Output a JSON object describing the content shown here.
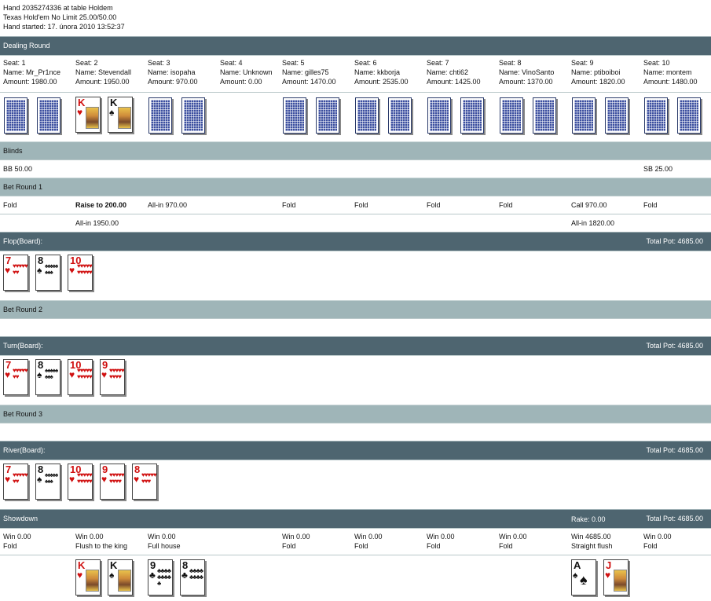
{
  "header": {
    "line1": "Hand 2035274336 at table Holdem",
    "line2": "Texas Hold'em No Limit 25.00/50.00",
    "line3": "Hand started: 17. února 2010 13:52:37"
  },
  "sections": {
    "dealing": "Dealing Round",
    "blinds": "Blinds",
    "bet1": "Bet Round 1",
    "flop": "Flop(Board):",
    "bet2": "Bet Round 2",
    "turn": "Turn(Board):",
    "bet3": "Bet Round 3",
    "river": "River(Board):",
    "showdown": "Showdown"
  },
  "pot": {
    "flop": "Total Pot: 4685.00",
    "turn": "Total Pot: 4685.00",
    "river": "Total Pot: 4685.00",
    "showdown": "Total Pot: 4685.00",
    "rake": "Rake: 0.00"
  },
  "seats": [
    {
      "seat": "Seat: 1",
      "name": "Name: Mr_Pr1nce",
      "amount": "Amount: 1980.00"
    },
    {
      "seat": "Seat: 2",
      "name": "Name: Stevendall",
      "amount": "Amount: 1950.00"
    },
    {
      "seat": "Seat: 3",
      "name": "Name: isopaha",
      "amount": "Amount: 970.00"
    },
    {
      "seat": "Seat: 4",
      "name": "Name: Unknown",
      "amount": "Amount: 0.00"
    },
    {
      "seat": "Seat: 5",
      "name": "Name: gilles75",
      "amount": "Amount: 1470.00"
    },
    {
      "seat": "Seat: 6",
      "name": "Name: kkborja",
      "amount": "Amount: 2535.00"
    },
    {
      "seat": "Seat: 7",
      "name": "Name: chti62",
      "amount": "Amount: 1425.00"
    },
    {
      "seat": "Seat: 8",
      "name": "Name: VinoSanto",
      "amount": "Amount: 1370.00"
    },
    {
      "seat": "Seat: 9",
      "name": "Name: ptiboiboi",
      "amount": "Amount: 1820.00"
    },
    {
      "seat": "Seat: 10",
      "name": "Name: montem",
      "amount": "Amount: 1480.00"
    }
  ],
  "blinds": {
    "seat1": "BB 50.00",
    "seat10": "SB 25.00"
  },
  "bet_round_1": {
    "row1": [
      "Fold",
      "Raise to 200.00",
      "All-in 970.00",
      "",
      "Fold",
      "Fold",
      "Fold",
      "Fold",
      "Call 970.00",
      "Fold"
    ],
    "row2_seat2": "All-in 1950.00",
    "row2_seat9": "All-in 1820.00"
  },
  "showdown": {
    "win": [
      "Win 0.00",
      "Win 0.00",
      "Win 0.00",
      "",
      "Win 0.00",
      "Win 0.00",
      "Win 0.00",
      "Win 0.00",
      "Win 4685.00",
      "Win 0.00"
    ],
    "hand": [
      "Fold",
      "Flush to the king",
      "Full house",
      "",
      "Fold",
      "Fold",
      "Fold",
      "Fold",
      "Straight flush",
      "Fold"
    ]
  },
  "cards": {
    "seat2_hole": [
      {
        "rank": "K",
        "suit": "♥",
        "color": "#d01010"
      },
      {
        "rank": "K",
        "suit": "♠",
        "color": "#111111"
      }
    ],
    "seat3_show": [
      {
        "rank": "9",
        "suit": "♣",
        "color": "#111111"
      },
      {
        "rank": "8",
        "suit": "♣",
        "color": "#111111"
      }
    ],
    "seat9_show": [
      {
        "rank": "A",
        "suit": "♠",
        "color": "#111111"
      },
      {
        "rank": "J",
        "suit": "♥",
        "color": "#d01010"
      }
    ],
    "board": [
      {
        "rank": "7",
        "suit": "♥",
        "color": "#d01010"
      },
      {
        "rank": "8",
        "suit": "♠",
        "color": "#111111"
      },
      {
        "rank": "10",
        "suit": "♥",
        "color": "#d01010"
      },
      {
        "rank": "9",
        "suit": "♥",
        "color": "#d01010"
      },
      {
        "rank": "8",
        "suit": "♥",
        "color": "#d01010"
      }
    ]
  },
  "colors": {
    "section_bar": "#4e6570",
    "sub_bar": "#9fb5b8",
    "red_suit": "#d01010"
  }
}
